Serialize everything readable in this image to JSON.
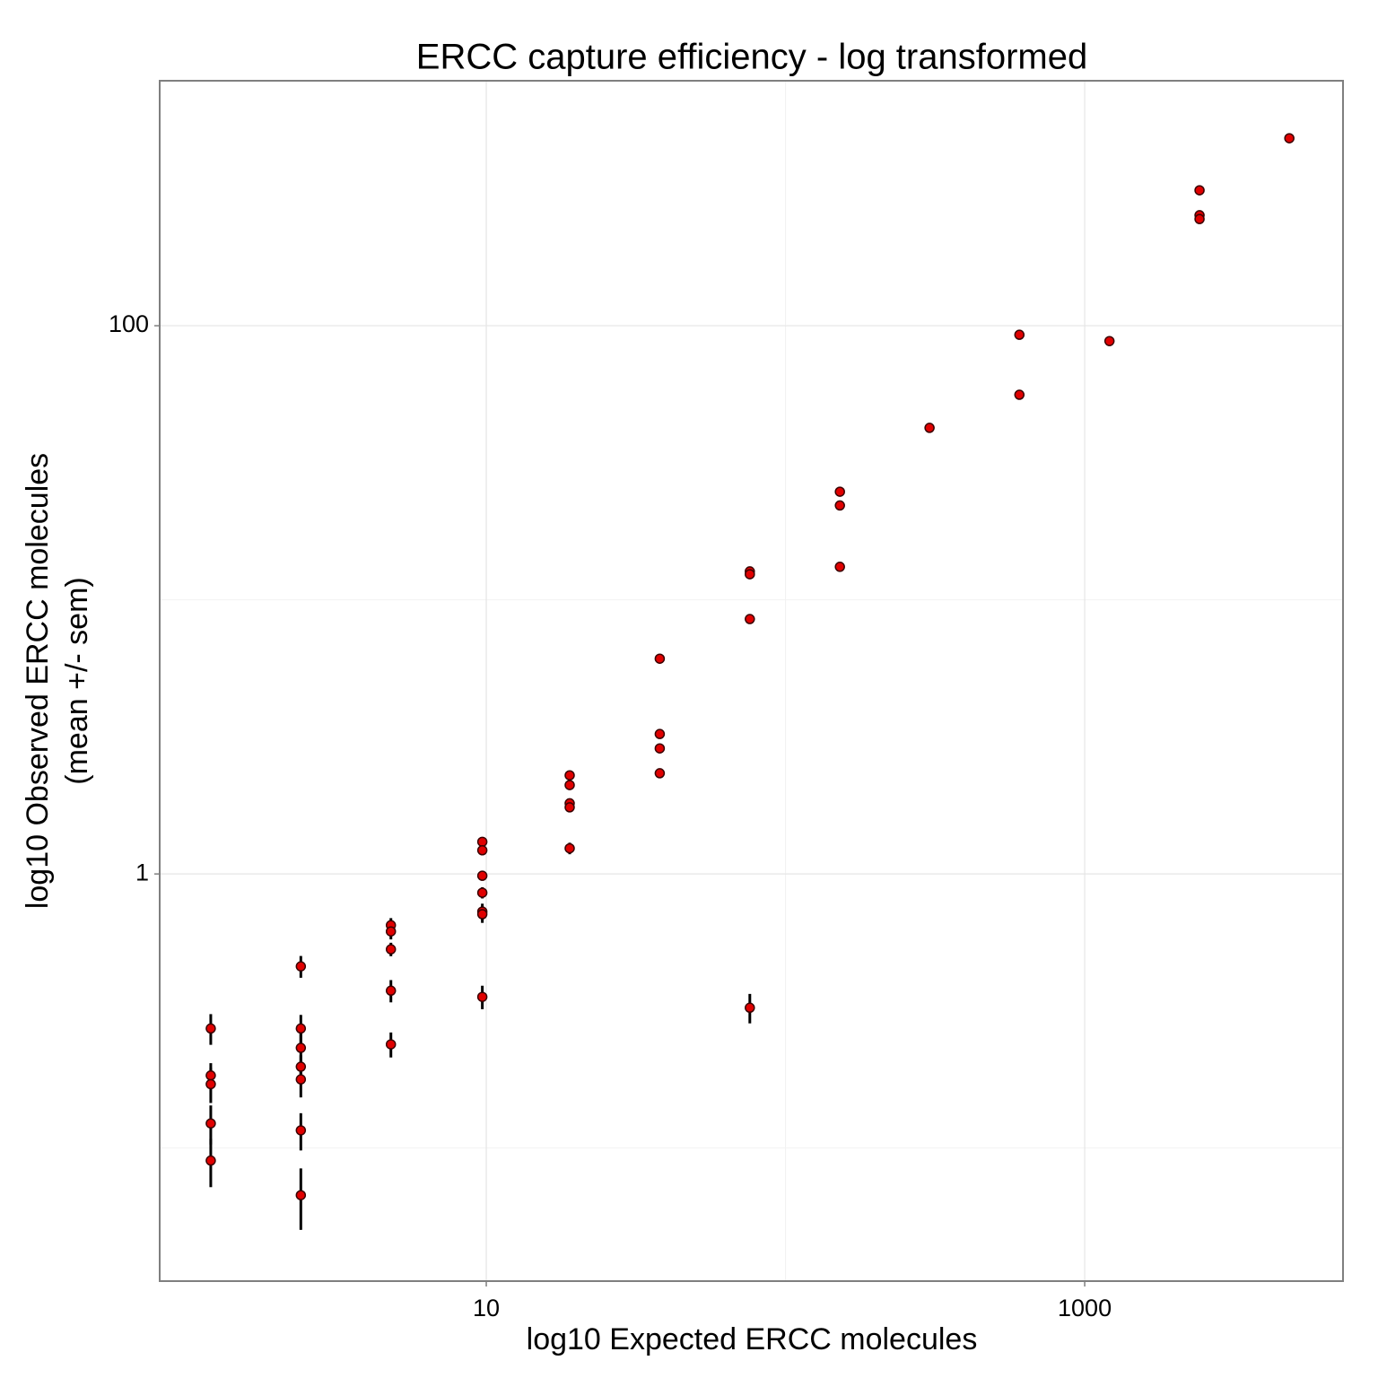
{
  "chart_data": {
    "type": "errorbar-scatter",
    "title": "ERCC capture efficiency - log transformed",
    "x_label": "log10 Expected ERCC molecules",
    "y_label": [
      "log10 Observed ERCC molecules",
      "(mean +/- sem)"
    ],
    "x_log": true,
    "y_log": true,
    "grid": true,
    "xlim": [
      0.81,
      7300
    ],
    "ylim": [
      0.0327,
      783
    ],
    "xticks": [
      10,
      1000
    ],
    "yticks": [
      1,
      100
    ],
    "x_minor_grid": [
      0.1,
      100
    ],
    "y_minor_grid": [
      0.1,
      10
    ],
    "point_color": "#e00000",
    "point_edge": "#3a0000",
    "errorbar_color": "#000000",
    "x": [
      1.2,
      1.2,
      1.2,
      1.2,
      1.2,
      2.4,
      2.4,
      2.4,
      2.4,
      2.4,
      2.4,
      2.4,
      4.8,
      4.8,
      4.8,
      4.8,
      4.8,
      9.7,
      9.7,
      9.7,
      9.7,
      9.7,
      9.7,
      9.7,
      19,
      19,
      19,
      19,
      19,
      38,
      38,
      38,
      38,
      76,
      76,
      76,
      76,
      152,
      152,
      152,
      303,
      605,
      605,
      1210,
      2420,
      2420,
      2420,
      4830
    ],
    "y": [
      0.273,
      0.184,
      0.171,
      0.123,
      0.09,
      0.46,
      0.273,
      0.232,
      0.198,
      0.178,
      0.116,
      0.0673,
      0.65,
      0.617,
      0.531,
      0.375,
      0.239,
      1.31,
      1.22,
      0.985,
      0.854,
      0.729,
      0.713,
      0.356,
      2.29,
      2.11,
      1.81,
      1.75,
      1.24,
      6.1,
      3.24,
      2.87,
      2.33,
      12.7,
      12.4,
      8.51,
      0.325,
      24.8,
      22.1,
      13.2,
      42.4,
      92.7,
      56.0,
      87.9,
      312,
      253,
      245,
      483
    ],
    "err": [
      0.035,
      0.02,
      0.025,
      0.02,
      0.018,
      0.042,
      0.033,
      0.03,
      0.02,
      0.025,
      0.018,
      0.017,
      0.04,
      0.04,
      0.03,
      0.035,
      0.025,
      0.05,
      0.05,
      0.04,
      0.04,
      0.05,
      0.05,
      0.035,
      0.07,
      0.07,
      0.06,
      0.06,
      0.06,
      0.1,
      0.08,
      0.07,
      0.07,
      0.2,
      0.2,
      0.15,
      0.04,
      0.3,
      0.3,
      0.2,
      0.5,
      1,
      0.7,
      1,
      3,
      3,
      3,
      4
    ]
  }
}
